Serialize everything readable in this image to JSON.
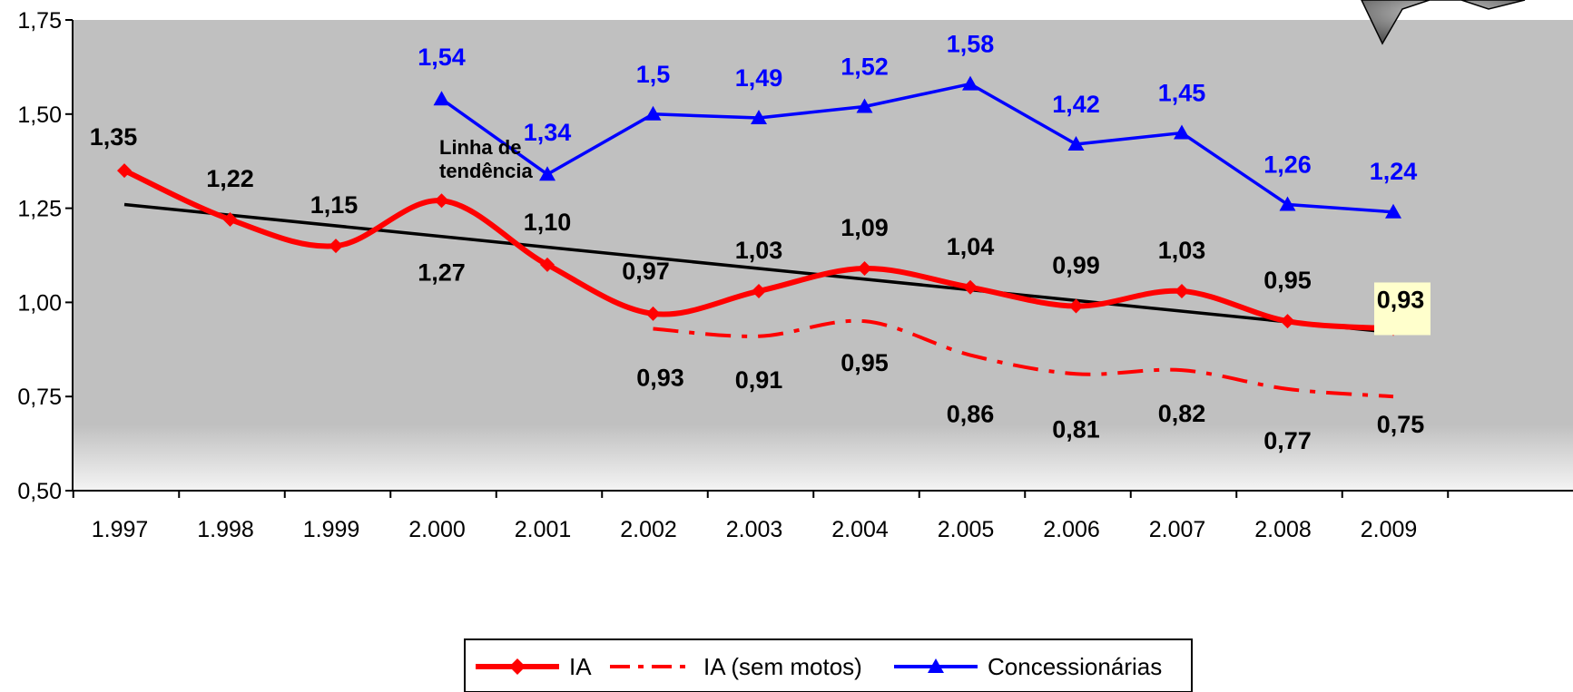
{
  "chart_data": {
    "type": "line",
    "categories": [
      "1.997",
      "1.998",
      "1.999",
      "2.000",
      "2.001",
      "2.002",
      "2.003",
      "2.004",
      "2.005",
      "2.006",
      "2.007",
      "2.008",
      "2.009"
    ],
    "ylim": [
      0.5,
      1.75
    ],
    "yticks": [
      "0,50",
      "0,75",
      "1,00",
      "1,25",
      "1,50",
      "1,75"
    ],
    "ytick_values": [
      0.5,
      0.75,
      1.0,
      1.25,
      1.5,
      1.75
    ],
    "annotation": "Linha de tendência",
    "legend_position": "bottom",
    "series": [
      {
        "name": "IA",
        "style": "solid-diamond",
        "color": "#ff0000",
        "values": [
          1.35,
          1.22,
          1.15,
          1.27,
          1.1,
          0.97,
          1.03,
          1.09,
          1.04,
          0.99,
          1.03,
          0.95,
          0.93
        ],
        "labels": [
          "1,35",
          "1,22",
          "1,15",
          "1,27",
          "1,10",
          "0,97",
          "1,03",
          "1,09",
          "1,04",
          "0,99",
          "1,03",
          "0,95",
          "0,93"
        ]
      },
      {
        "name": "IA  (sem motos)",
        "style": "dash-dot",
        "color": "#ff0000",
        "values": [
          null,
          null,
          null,
          null,
          null,
          0.93,
          0.91,
          0.95,
          0.86,
          0.81,
          0.82,
          0.77,
          0.75
        ],
        "labels": [
          null,
          null,
          null,
          null,
          null,
          "0,93",
          "0,91",
          "0,95",
          "0,86",
          "0,81",
          "0,82",
          "0,77",
          "0,75"
        ]
      },
      {
        "name": "Concessionárias",
        "style": "solid-triangle",
        "color": "#0000ff",
        "values": [
          null,
          null,
          null,
          1.54,
          1.34,
          1.5,
          1.49,
          1.52,
          1.58,
          1.42,
          1.45,
          1.26,
          1.24
        ],
        "labels": [
          null,
          null,
          null,
          "1,54",
          "1,34",
          "1,5",
          "1,49",
          "1,52",
          "1,58",
          "1,42",
          "1,45",
          "1,26",
          "1,24"
        ]
      }
    ],
    "trendline": {
      "color": "#000000",
      "from": 1.26,
      "to": 0.92
    }
  }
}
